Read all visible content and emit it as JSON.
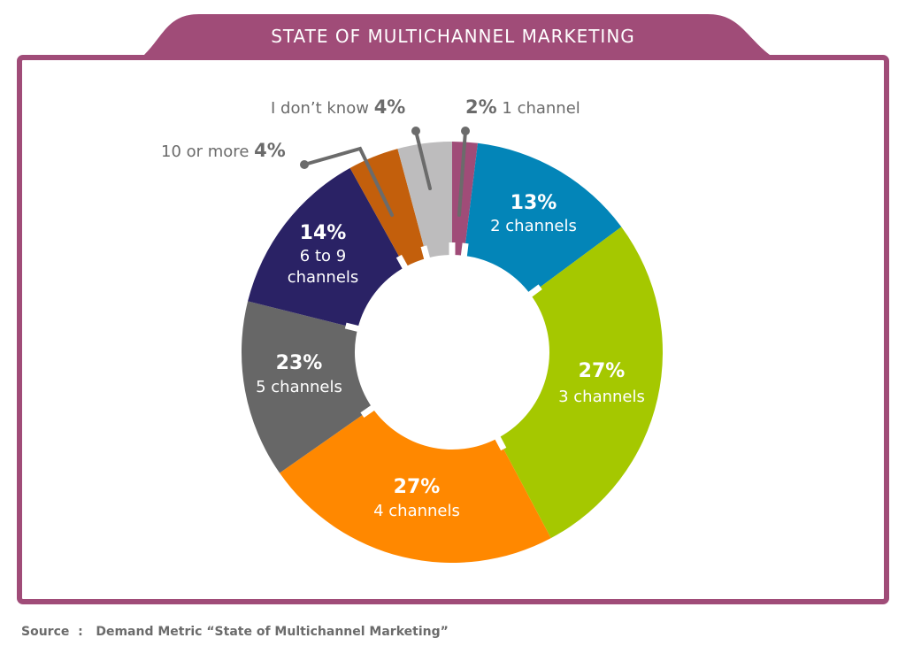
{
  "header": {
    "title": "STATE OF MULTICHANNEL MARKETING"
  },
  "colors": {
    "frame": "#a04c78",
    "leader": "#6b6b6b",
    "text_gray": "#6b6b6b"
  },
  "chart_data": {
    "type": "pie",
    "variant": "donut",
    "title": "STATE OF MULTICHANNEL MARKETING",
    "categories": [
      "1 channel",
      "2 channels",
      "3 channels",
      "4 channels",
      "5 channels",
      "6 to 9 channels",
      "10 or more",
      "I don't know"
    ],
    "values": [
      2,
      13,
      27,
      27,
      23,
      14,
      4,
      4
    ],
    "unit": "%",
    "colors": [
      "#a04c78",
      "#0385b8",
      "#a5c800",
      "#ff8800",
      "#676767",
      "#2a2265",
      "#c35f0c",
      "#bdbcbd"
    ],
    "start_angle_deg": 0,
    "direction": "clockwise"
  },
  "segments": [
    {
      "id": "1-channel",
      "pct": "2%",
      "label": "1 channel",
      "color": "#a04c78"
    },
    {
      "id": "2-channels",
      "pct": "13%",
      "label": "2 channels",
      "color": "#0385b8"
    },
    {
      "id": "3-channels",
      "pct": "27%",
      "label": "3 channels",
      "color": "#a5c800"
    },
    {
      "id": "4-channels",
      "pct": "27%",
      "label": "4 channels",
      "color": "#ff8800"
    },
    {
      "id": "5-channels",
      "pct": "23%",
      "label": "5 channels",
      "color": "#676767"
    },
    {
      "id": "6-9-channels",
      "pct": "14%",
      "label_line1": "6 to 9",
      "label_line2": "channels",
      "color": "#2a2265"
    },
    {
      "id": "10-or-more",
      "pct": "4%",
      "label": "10 or more",
      "color": "#c35f0c"
    },
    {
      "id": "dont-know",
      "pct": "4%",
      "label": "I don’t know",
      "color": "#bdbcbd"
    }
  ],
  "footer": {
    "source_label": "Source  :",
    "source_text": "Demand Metric “State of Multichannel Marketing”"
  }
}
